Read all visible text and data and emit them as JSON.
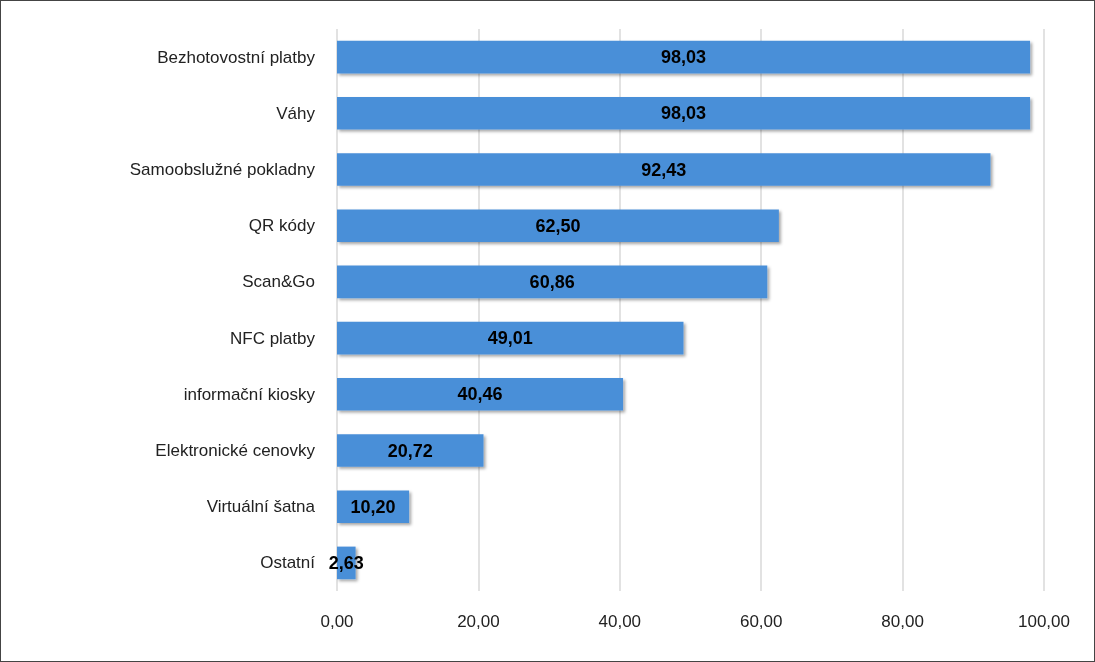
{
  "chart_data": {
    "type": "bar",
    "orientation": "horizontal",
    "categories": [
      "Bezhotovostní platby",
      "Váhy",
      "Samoobslužné pokladny",
      "QR kódy",
      "Scan&Go",
      "NFC platby",
      "informační kiosky",
      "Elektronické cenovky",
      "Virtuální šatna",
      "Ostatní"
    ],
    "values": [
      98.03,
      98.03,
      92.43,
      62.5,
      60.86,
      49.01,
      40.46,
      20.72,
      10.2,
      2.63
    ],
    "value_labels": [
      "98,03",
      "98,03",
      "92,43",
      "62,50",
      "60,86",
      "49,01",
      "40,46",
      "20,72",
      "10,20",
      "2,63"
    ],
    "color": "#4a8fd8",
    "xlim": [
      0,
      100
    ],
    "xticks": [
      {
        "value": 0,
        "label": "0,00"
      },
      {
        "value": 20,
        "label": "20,00"
      },
      {
        "value": 40,
        "label": "40,00"
      },
      {
        "value": 60,
        "label": "60,00"
      },
      {
        "value": 80,
        "label": "80,00"
      },
      {
        "value": 100,
        "label": "100,00"
      }
    ],
    "grid": "x"
  }
}
